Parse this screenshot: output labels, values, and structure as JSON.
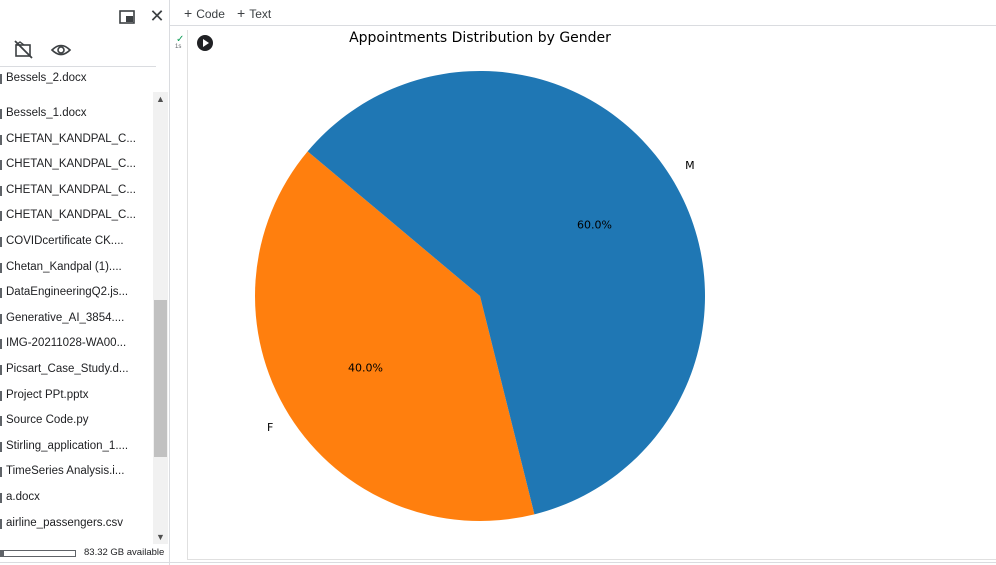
{
  "sidebar": {
    "partial_top_file": "Bessels_2.docx",
    "files": [
      "Bessels_1.docx",
      "CHETAN_KANDPAL_C...",
      "CHETAN_KANDPAL_C...",
      "CHETAN_KANDPAL_C...",
      "CHETAN_KANDPAL_C...",
      "COVIDcertificate CK....",
      "Chetan_Kandpal (1)....",
      "DataEngineeringQ2.js...",
      "Generative_AI_3854....",
      "IMG-20211028-WA00...",
      "Picsart_Case_Study.d...",
      "Project PPt.pptx",
      "Source Code.py",
      "Stirling_application_1....",
      "TimeSeries Analysis.i...",
      "a.docx",
      "airline_passengers.csv"
    ],
    "disk_label": "83.32 GB available",
    "icons": {
      "window": "open-in-window-icon",
      "close": "close-icon",
      "hide": "hide-files-icon",
      "eye": "eye-icon"
    }
  },
  "toolbar": {
    "code_label": "Code",
    "text_label": "Text"
  },
  "cell": {
    "status_check": "✓",
    "status_time": "1s"
  },
  "chart_data": {
    "type": "pie",
    "title": "Appointments Distribution by Gender",
    "slices": [
      {
        "label": "F",
        "value": 40.0,
        "pct_label": "40.0%",
        "color": "#ff7f0e"
      },
      {
        "label": "M",
        "value": 60.0,
        "pct_label": "60.0%",
        "color": "#1f77b4"
      }
    ],
    "start_angle_deg": 140,
    "direction": "counterclockwise"
  }
}
